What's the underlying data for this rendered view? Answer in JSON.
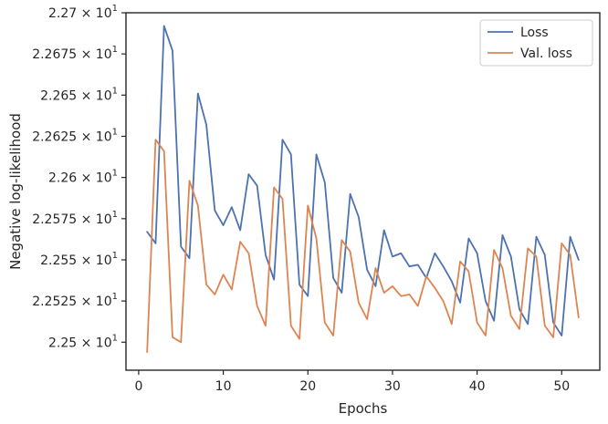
{
  "chart_data": {
    "type": "line",
    "xlabel": "Epochs",
    "ylabel": "Negative log-likelihood",
    "xlim": [
      -1.5,
      54.5
    ],
    "ylim": [
      22.483,
      22.7
    ],
    "x_ticks": [
      0,
      10,
      20,
      30,
      40,
      50
    ],
    "x_tick_labels": [
      "0",
      "10",
      "20",
      "30",
      "40",
      "50"
    ],
    "y_ticks": [
      22.5,
      22.525,
      22.55,
      22.575,
      22.6,
      22.625,
      22.65,
      22.675,
      22.7
    ],
    "y_tick_mantissas": [
      "2.25",
      "2.2525",
      "2.255",
      "2.2575",
      "2.26",
      "2.2625",
      "2.265",
      "2.2675",
      "2.27"
    ],
    "y_tick_base": "10",
    "y_tick_exponent": "1",
    "y_tick_times": "×",
    "grid": false,
    "legend_position": "top-right",
    "x": [
      1,
      2,
      3,
      4,
      5,
      6,
      7,
      8,
      9,
      10,
      11,
      12,
      13,
      14,
      15,
      16,
      17,
      18,
      19,
      20,
      21,
      22,
      23,
      24,
      25,
      26,
      27,
      28,
      29,
      30,
      31,
      32,
      33,
      34,
      35,
      36,
      37,
      38,
      39,
      40,
      41,
      42,
      43,
      44,
      45,
      46,
      47,
      48,
      49,
      50,
      51,
      52
    ],
    "series": [
      {
        "name": "Loss",
        "color": "#4c72b0",
        "values": [
          22.567,
          22.56,
          22.692,
          22.677,
          22.558,
          22.551,
          22.651,
          22.632,
          22.58,
          22.571,
          22.582,
          22.568,
          22.602,
          22.595,
          22.553,
          22.538,
          22.623,
          22.614,
          22.535,
          22.528,
          22.614,
          22.597,
          22.539,
          22.53,
          22.59,
          22.576,
          22.544,
          22.534,
          22.568,
          22.552,
          22.554,
          22.546,
          22.547,
          22.539,
          22.554,
          22.546,
          22.537,
          22.524,
          22.563,
          22.554,
          22.525,
          22.513,
          22.565,
          22.552,
          22.52,
          22.511,
          22.564,
          22.553,
          22.512,
          22.504,
          22.564,
          22.55
        ]
      },
      {
        "name": "Val. loss",
        "color": "#dd8452",
        "values": [
          22.494,
          22.623,
          22.616,
          22.503,
          22.5,
          22.598,
          22.583,
          22.535,
          22.529,
          22.541,
          22.532,
          22.561,
          22.554,
          22.522,
          22.51,
          22.594,
          22.587,
          22.51,
          22.502,
          22.583,
          22.563,
          22.512,
          22.504,
          22.562,
          22.555,
          22.524,
          22.514,
          22.545,
          22.53,
          22.534,
          22.528,
          22.529,
          22.522,
          22.54,
          22.533,
          22.525,
          22.511,
          22.549,
          22.543,
          22.512,
          22.504,
          22.556,
          22.545,
          22.516,
          22.508,
          22.557,
          22.552,
          22.51,
          22.503,
          22.56,
          22.553,
          22.515
        ]
      }
    ]
  }
}
